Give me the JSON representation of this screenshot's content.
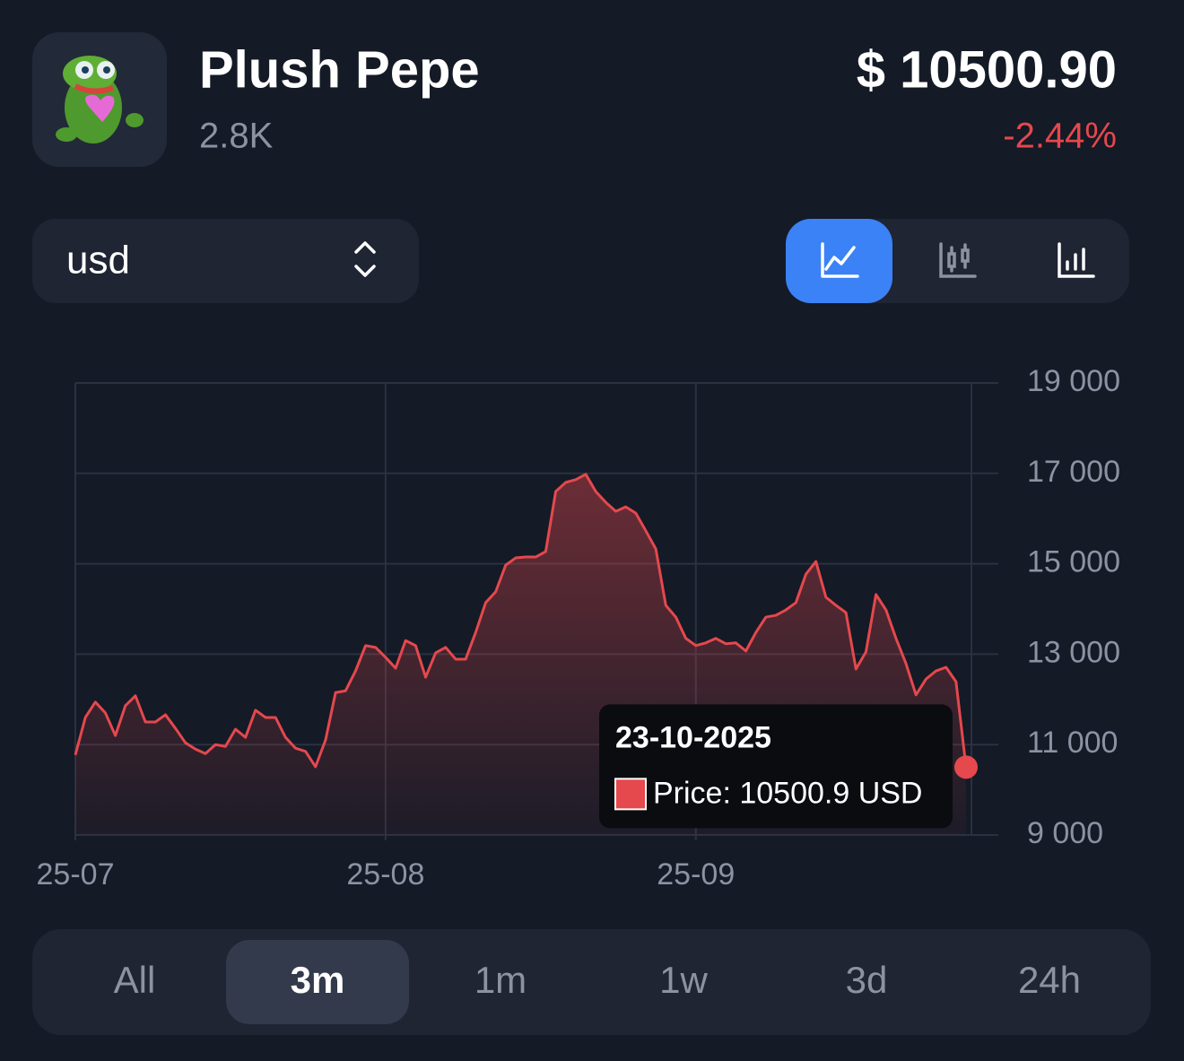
{
  "header": {
    "name": "Plush Pepe",
    "count": "2.8K",
    "price": "$ 10500.90",
    "change": "-2.44%"
  },
  "currency_select": "usd",
  "period_tabs": [
    "All",
    "3m",
    "1m",
    "1w",
    "3d",
    "24h"
  ],
  "selected_period": "3m",
  "chart_data": {
    "type": "line",
    "categories": [
      "25-07",
      null,
      null,
      null,
      null,
      null,
      null,
      null,
      null,
      null,
      null,
      null,
      null,
      null,
      null,
      null,
      null,
      null,
      null,
      null,
      null,
      null,
      null,
      null,
      null,
      null,
      null,
      null,
      null,
      null,
      null,
      "25-08",
      null,
      null,
      null,
      null,
      null,
      null,
      null,
      null,
      null,
      null,
      null,
      null,
      null,
      null,
      null,
      null,
      null,
      null,
      null,
      null,
      null,
      null,
      null,
      null,
      null,
      null,
      null,
      null,
      null,
      null,
      "25-09",
      null,
      null,
      null,
      null,
      null,
      null,
      null,
      null,
      null,
      null,
      null,
      null,
      null,
      null,
      null,
      null,
      null,
      null,
      null,
      null,
      null,
      null,
      null,
      null,
      null,
      null,
      null
    ],
    "series": [
      {
        "name": "Price",
        "color": "#e5484d",
        "values": [
          10770,
          11600,
          11940,
          11700,
          11200,
          11860,
          12080,
          11500,
          11500,
          11660,
          11360,
          11040,
          10900,
          10800,
          11000,
          10960,
          11340,
          11160,
          11760,
          11600,
          11600,
          11160,
          10920,
          10850,
          10510,
          11100,
          12150,
          12190,
          12630,
          13190,
          13150,
          12930,
          12690,
          13300,
          13190,
          12490,
          13030,
          13150,
          12890,
          12890,
          13480,
          14140,
          14380,
          14970,
          15130,
          15150,
          15150,
          15270,
          16600,
          16800,
          16860,
          16980,
          16600,
          16360,
          16160,
          16260,
          16120,
          15730,
          15330,
          14080,
          13820,
          13350,
          13190,
          13250,
          13350,
          13230,
          13250,
          13070,
          13480,
          13820,
          13860,
          13980,
          14140,
          14770,
          15050,
          14260,
          14080,
          13920,
          12670,
          13050,
          14320,
          13980,
          13350,
          12790,
          12100,
          12450,
          12630,
          12710,
          12390,
          10500.9
        ]
      }
    ],
    "ylim": [
      9000,
      19000
    ],
    "yticks": [
      {
        "value": 9000,
        "label": "9 000"
      },
      {
        "value": 11000,
        "label": "11 000"
      },
      {
        "value": 13000,
        "label": "13 000"
      },
      {
        "value": 15000,
        "label": "15 000"
      },
      {
        "value": 17000,
        "label": "17 000"
      },
      {
        "value": 19000,
        "label": "19 000"
      }
    ],
    "grid": true,
    "tooltip": {
      "date": "23-10-2025",
      "label": "Price: 10500.9 USD"
    }
  }
}
